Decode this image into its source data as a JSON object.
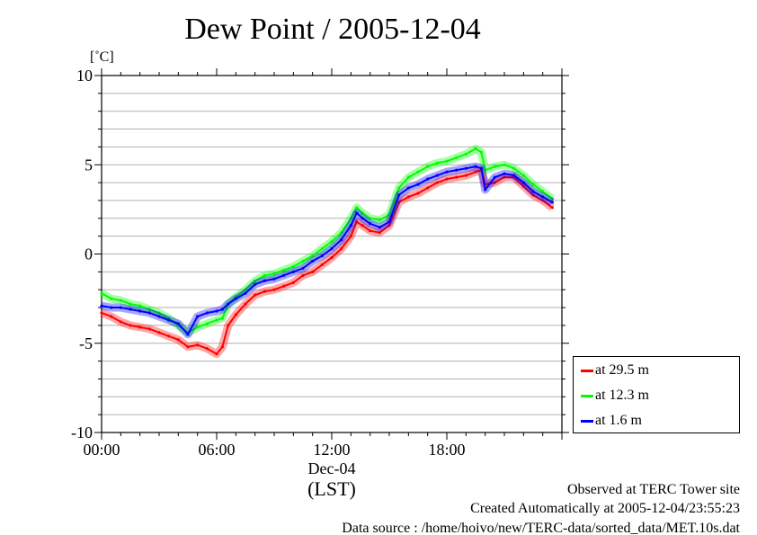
{
  "chart_data": {
    "type": "line",
    "title": "Dew Point / 2005-12-04",
    "y_unit": "[˚C]",
    "ylim": [
      -10,
      10
    ],
    "y_ticks": [
      -10,
      -5,
      0,
      5,
      10
    ],
    "xlim": [
      0,
      24
    ],
    "x_ticks": [
      0,
      6,
      12,
      18
    ],
    "x_tick_labels": [
      "00:00",
      "06:00",
      "12:00",
      "18:00"
    ],
    "x_date_label": "Dec-04",
    "xlabel": "(LST)",
    "grid": "horizontal",
    "legend_position": "right-bottom",
    "series": [
      {
        "name": "at 29.5 m",
        "color": "#ff0000",
        "x": [
          0,
          0.5,
          1,
          1.5,
          2,
          2.5,
          3,
          3.5,
          4,
          4.5,
          5,
          5.5,
          6,
          6.3,
          6.6,
          7,
          7.5,
          8,
          8.5,
          9,
          9.5,
          10,
          10.5,
          11,
          11.5,
          12,
          12.5,
          13,
          13.3,
          13.6,
          14,
          14.5,
          15,
          15.5,
          16,
          16.5,
          17,
          17.5,
          18,
          18.5,
          19,
          19.5,
          19.8,
          20,
          20.5,
          21,
          21.5,
          22,
          22.5,
          23,
          23.5
        ],
        "values": [
          -3.3,
          -3.5,
          -3.8,
          -4.0,
          -4.1,
          -4.2,
          -4.4,
          -4.6,
          -4.8,
          -5.2,
          -5.1,
          -5.3,
          -5.6,
          -5.2,
          -4.0,
          -3.4,
          -2.8,
          -2.3,
          -2.1,
          -2.0,
          -1.8,
          -1.6,
          -1.2,
          -1.0,
          -0.6,
          -0.2,
          0.3,
          1.0,
          1.8,
          1.6,
          1.3,
          1.2,
          1.6,
          2.9,
          3.2,
          3.4,
          3.7,
          4.0,
          4.2,
          4.3,
          4.4,
          4.6,
          4.7,
          3.9,
          4.0,
          4.3,
          4.3,
          3.8,
          3.3,
          3.0,
          2.6
        ]
      },
      {
        "name": "at 12.3 m",
        "color": "#00ff00",
        "x": [
          0,
          0.5,
          1,
          1.5,
          2,
          2.5,
          3,
          3.5,
          4,
          4.5,
          5,
          5.5,
          6,
          6.3,
          6.6,
          7,
          7.5,
          8,
          8.5,
          9,
          9.5,
          10,
          10.5,
          11,
          11.5,
          12,
          12.5,
          13,
          13.3,
          13.6,
          14,
          14.5,
          15,
          15.5,
          16,
          16.5,
          17,
          17.5,
          18,
          18.5,
          19,
          19.5,
          19.8,
          20,
          20.5,
          21,
          21.5,
          22,
          22.5,
          23,
          23.5
        ],
        "values": [
          -2.2,
          -2.5,
          -2.6,
          -2.8,
          -2.9,
          -3.1,
          -3.3,
          -3.6,
          -4.0,
          -4.4,
          -4.1,
          -3.9,
          -3.7,
          -3.6,
          -2.8,
          -2.4,
          -2.0,
          -1.5,
          -1.2,
          -1.1,
          -0.9,
          -0.7,
          -0.4,
          -0.1,
          0.3,
          0.7,
          1.2,
          2.0,
          2.6,
          2.3,
          2.0,
          1.9,
          2.2,
          3.7,
          4.3,
          4.6,
          4.9,
          5.1,
          5.2,
          5.4,
          5.6,
          5.9,
          5.7,
          4.7,
          4.9,
          5.0,
          4.8,
          4.4,
          3.9,
          3.5,
          3.1
        ]
      },
      {
        "name": "at 1.6 m",
        "color": "#0000ff",
        "x": [
          0,
          0.5,
          1,
          1.5,
          2,
          2.5,
          3,
          3.5,
          4,
          4.5,
          5,
          5.5,
          6,
          6.3,
          6.6,
          7,
          7.5,
          8,
          8.5,
          9,
          9.5,
          10,
          10.5,
          11,
          11.5,
          12,
          12.5,
          13,
          13.3,
          13.6,
          14,
          14.5,
          15,
          15.5,
          16,
          16.5,
          17,
          17.5,
          18,
          18.5,
          19,
          19.5,
          19.8,
          20,
          20.5,
          21,
          21.5,
          22,
          22.5,
          23,
          23.5
        ],
        "values": [
          -2.9,
          -3.0,
          -3.0,
          -3.1,
          -3.2,
          -3.3,
          -3.5,
          -3.7,
          -3.9,
          -4.5,
          -3.5,
          -3.3,
          -3.2,
          -3.1,
          -2.8,
          -2.5,
          -2.2,
          -1.7,
          -1.5,
          -1.4,
          -1.2,
          -1.0,
          -0.8,
          -0.4,
          -0.1,
          0.3,
          0.8,
          1.6,
          2.3,
          2.0,
          1.7,
          1.5,
          1.8,
          3.3,
          3.7,
          3.9,
          4.2,
          4.4,
          4.6,
          4.7,
          4.8,
          4.9,
          4.8,
          3.6,
          4.3,
          4.5,
          4.4,
          4.0,
          3.5,
          3.2,
          2.9
        ]
      }
    ]
  },
  "footer": {
    "line1": "Observed at TERC Tower site",
    "line2": "Created Automatically at 2005-12-04/23:55:23",
    "line3": "Data source : /home/hoivo/new/TERC-data/sorted_data/MET.10s.dat"
  }
}
